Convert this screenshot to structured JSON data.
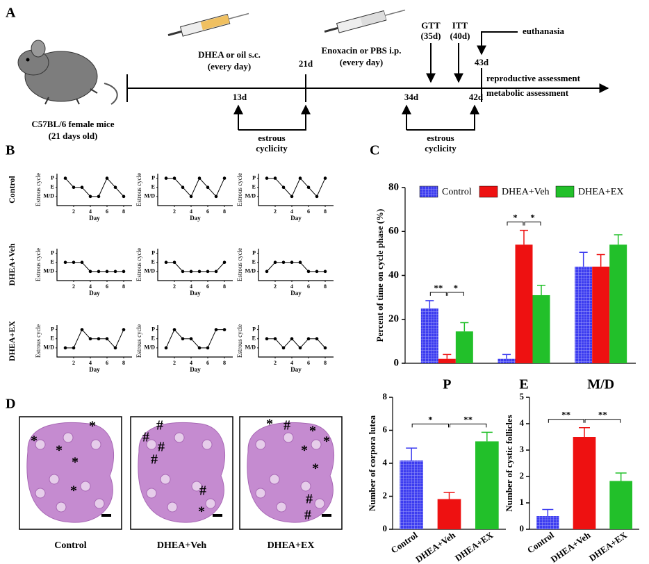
{
  "panel_labels": [
    "A",
    "B",
    "C",
    "D"
  ],
  "timeline": {
    "mouse": [
      "C57BL/6 female mice",
      "(21 days old)"
    ],
    "treatments": [
      [
        "DHEA or oil s.c.",
        "(every day)"
      ],
      [
        "Enoxacin  or PBS i.p.",
        "(every day)"
      ]
    ],
    "tests": [
      [
        "GTT",
        "(35d)"
      ],
      [
        "ITT",
        "(40d)"
      ]
    ],
    "euthanasia": "euthanasia",
    "days": [
      "13d",
      "21d",
      "34d",
      "42d",
      "43d"
    ],
    "assessments": [
      "reproductive assessment",
      "metabolic assessment"
    ],
    "cyclicity": [
      [
        "estrous",
        "cyclicity"
      ],
      [
        "estrous",
        "cyclicity"
      ]
    ]
  },
  "group_labels": [
    "Control",
    "DHEA+Veh",
    "DHEA+EX"
  ],
  "chart_data": [
    {
      "type": "line",
      "xlabel": "Day",
      "ylabel": "Estrous cycle",
      "color": "#000000",
      "x": [
        1,
        2,
        3,
        4,
        5,
        6,
        7,
        8
      ],
      "values": [
        3,
        2,
        2,
        1,
        1,
        3,
        2,
        1
      ],
      "xlim": [
        0,
        9
      ],
      "ylim": [
        0,
        3.5
      ],
      "xticks": [
        2,
        4,
        6,
        8
      ],
      "yticks": [
        {
          "value": 1,
          "label": "M/D"
        },
        {
          "value": 2,
          "label": "E"
        },
        {
          "value": 3,
          "label": "P"
        }
      ]
    },
    {
      "type": "line",
      "xlabel": "Day",
      "ylabel": "Estrous cycle",
      "color": "#000000",
      "x": [
        1,
        2,
        3,
        4,
        5,
        6,
        7,
        8
      ],
      "values": [
        3,
        3,
        2,
        1,
        3,
        2,
        1,
        3
      ],
      "xlim": [
        0,
        9
      ],
      "ylim": [
        0,
        3.5
      ],
      "xticks": [
        2,
        4,
        6,
        8
      ],
      "yticks": [
        {
          "value": 1,
          "label": "M/D"
        },
        {
          "value": 2,
          "label": "E"
        },
        {
          "value": 3,
          "label": "P"
        }
      ]
    },
    {
      "type": "line",
      "xlabel": "Day",
      "ylabel": "Estrous cycle",
      "color": "#000000",
      "x": [
        1,
        2,
        3,
        4,
        5,
        6,
        7,
        8
      ],
      "values": [
        3,
        3,
        2,
        1,
        3,
        2,
        1,
        3
      ],
      "xlim": [
        0,
        9
      ],
      "ylim": [
        0,
        3.5
      ],
      "xticks": [
        2,
        4,
        6,
        8
      ],
      "yticks": [
        {
          "value": 1,
          "label": "M/D"
        },
        {
          "value": 2,
          "label": "E"
        },
        {
          "value": 3,
          "label": "P"
        }
      ]
    },
    {
      "type": "line",
      "xlabel": "Day",
      "ylabel": "Estrous cycle",
      "color": "#000000",
      "x": [
        1,
        2,
        3,
        4,
        5,
        6,
        7,
        8
      ],
      "values": [
        2,
        2,
        2,
        1,
        1,
        1,
        1,
        1
      ],
      "xlim": [
        0,
        9
      ],
      "ylim": [
        0,
        3.5
      ],
      "xticks": [
        2,
        4,
        6,
        8
      ],
      "yticks": [
        {
          "value": 1,
          "label": "M/D"
        },
        {
          "value": 2,
          "label": "E"
        },
        {
          "value": 3,
          "label": "P"
        }
      ]
    },
    {
      "type": "line",
      "xlabel": "Day",
      "ylabel": "Estrous cycle",
      "color": "#000000",
      "x": [
        1,
        2,
        3,
        4,
        5,
        6,
        7,
        8
      ],
      "values": [
        2,
        2,
        1,
        1,
        1,
        1,
        1,
        2
      ],
      "xlim": [
        0,
        9
      ],
      "ylim": [
        0,
        3.5
      ],
      "xticks": [
        2,
        4,
        6,
        8
      ],
      "yticks": [
        {
          "value": 1,
          "label": "M/D"
        },
        {
          "value": 2,
          "label": "E"
        },
        {
          "value": 3,
          "label": "P"
        }
      ]
    },
    {
      "type": "line",
      "xlabel": "Day",
      "ylabel": "Estrous cycle",
      "color": "#000000",
      "x": [
        1,
        2,
        3,
        4,
        5,
        6,
        7,
        8
      ],
      "values": [
        1,
        2,
        2,
        2,
        2,
        1,
        1,
        1
      ],
      "xlim": [
        0,
        9
      ],
      "ylim": [
        0,
        3.5
      ],
      "xticks": [
        2,
        4,
        6,
        8
      ],
      "yticks": [
        {
          "value": 1,
          "label": "M/D"
        },
        {
          "value": 2,
          "label": "E"
        },
        {
          "value": 3,
          "label": "P"
        }
      ]
    },
    {
      "type": "line",
      "xlabel": "Day",
      "ylabel": "Estrous cycle",
      "color": "#000000",
      "x": [
        1,
        2,
        3,
        4,
        5,
        6,
        7,
        8
      ],
      "values": [
        1,
        1,
        3,
        2,
        2,
        2,
        1,
        3
      ],
      "xlim": [
        0,
        9
      ],
      "ylim": [
        0,
        3.5
      ],
      "xticks": [
        2,
        4,
        6,
        8
      ],
      "yticks": [
        {
          "value": 1,
          "label": "M/D"
        },
        {
          "value": 2,
          "label": "E"
        },
        {
          "value": 3,
          "label": "P"
        }
      ]
    },
    {
      "type": "line",
      "xlabel": "Day",
      "ylabel": "Estrous cycle",
      "color": "#000000",
      "x": [
        1,
        2,
        3,
        4,
        5,
        6,
        7,
        8
      ],
      "values": [
        1,
        3,
        2,
        2,
        1,
        1,
        3,
        3
      ],
      "xlim": [
        0,
        9
      ],
      "ylim": [
        0,
        3.5
      ],
      "xticks": [
        2,
        4,
        6,
        8
      ],
      "yticks": [
        {
          "value": 1,
          "label": "M/D"
        },
        {
          "value": 2,
          "label": "E"
        },
        {
          "value": 3,
          "label": "P"
        }
      ]
    },
    {
      "type": "line",
      "xlabel": "Day",
      "ylabel": "Estrous cycle",
      "color": "#000000",
      "x": [
        1,
        2,
        3,
        4,
        5,
        6,
        7,
        8
      ],
      "values": [
        2,
        2,
        1,
        2,
        1,
        2,
        2,
        1
      ],
      "xlim": [
        0,
        9
      ],
      "ylim": [
        0,
        3.5
      ],
      "xticks": [
        2,
        4,
        6,
        8
      ],
      "yticks": [
        {
          "value": 1,
          "label": "M/D"
        },
        {
          "value": 2,
          "label": "E"
        },
        {
          "value": 3,
          "label": "P"
        }
      ]
    },
    {
      "type": "grouped-bar",
      "ylabel": "Percent of time on cycle phase   (%)",
      "categories": [
        "P",
        "E",
        "M/D"
      ],
      "series": [
        {
          "name": "Control",
          "color": "#3c3cf0",
          "pattern": "grid",
          "values": [
            25,
            2,
            44
          ],
          "errors": [
            3.5,
            2,
            6.5
          ]
        },
        {
          "name": "DHEA+Veh",
          "color": "#ee1111",
          "values": [
            2,
            54,
            44
          ],
          "errors": [
            2,
            6.5,
            5.5
          ]
        },
        {
          "name": "DHEA+EX",
          "color": "#22c02a",
          "values": [
            14.5,
            31,
            54
          ],
          "errors": [
            4,
            4.5,
            4.5
          ]
        }
      ],
      "ylim": [
        0,
        80
      ],
      "yticks": [
        0,
        20,
        40,
        60,
        80
      ],
      "significance": [
        [
          "**",
          "*"
        ],
        [
          "*",
          "*"
        ],
        []
      ]
    },
    {
      "type": "bar",
      "ylabel": "Number of corpora lutea",
      "categories": [
        "Control",
        "DHEA+Veh",
        "DHEA+EX"
      ],
      "values": [
        4.17,
        1.83,
        5.33
      ],
      "errors": [
        0.75,
        0.4,
        0.55
      ],
      "colors": [
        "#3c3cf0",
        "#ee1111",
        "#22c02a"
      ],
      "hatched": [
        true,
        false,
        false
      ],
      "ylim": [
        0,
        8
      ],
      "yticks": [
        0,
        2,
        4,
        6,
        8
      ],
      "significance": [
        "*",
        "**"
      ]
    },
    {
      "type": "bar",
      "ylabel": "Number of cystic follicles",
      "categories": [
        "Control",
        "DHEA+Veh",
        "DHEA+EX"
      ],
      "values": [
        0.5,
        3.5,
        1.83
      ],
      "errors": [
        0.25,
        0.35,
        0.3
      ],
      "colors": [
        "#3c3cf0",
        "#ee1111",
        "#22c02a"
      ],
      "hatched": [
        true,
        false,
        false
      ],
      "ylim": [
        0,
        5
      ],
      "yticks": [
        0,
        1,
        2,
        3,
        4,
        5
      ],
      "significance": [
        "**",
        "**"
      ]
    }
  ],
  "histology": [
    {
      "caption": "Control",
      "symbols": [
        "*",
        "*",
        "*",
        "*",
        "*"
      ]
    },
    {
      "caption": "DHEA+Veh",
      "symbols": [
        "#",
        "#",
        "#",
        "#",
        "#",
        "*"
      ]
    },
    {
      "caption": "DHEA+EX",
      "symbols": [
        "*",
        "*",
        "*",
        "*",
        "*",
        "#",
        "#",
        "#"
      ]
    }
  ]
}
